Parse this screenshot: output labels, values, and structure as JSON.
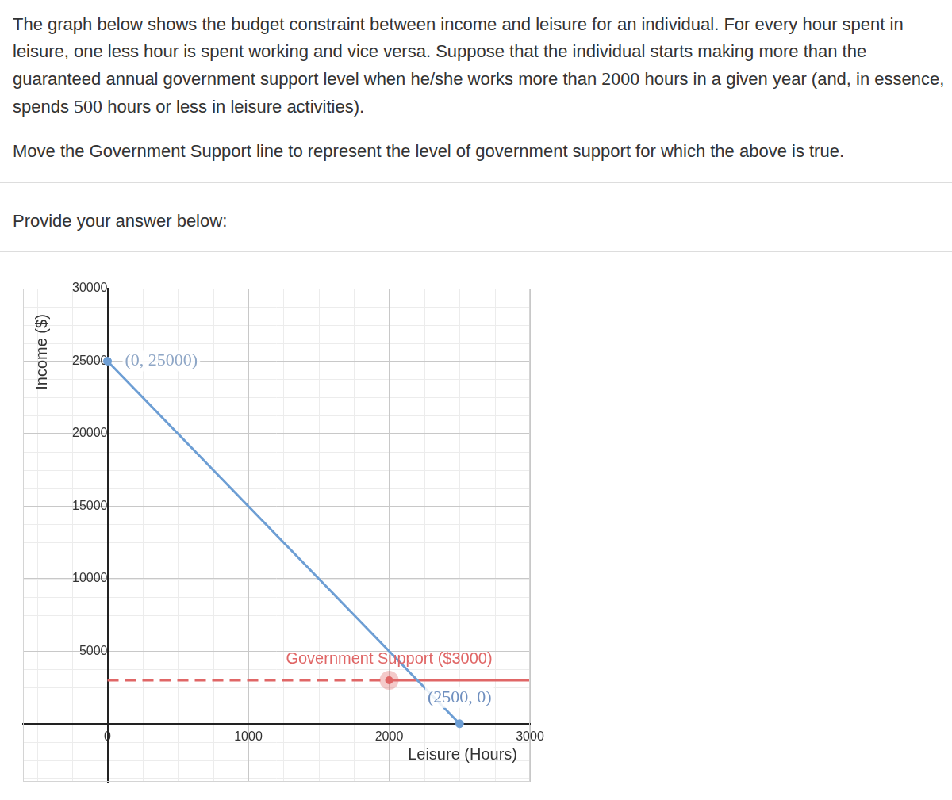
{
  "question": {
    "paragraphs": [
      [
        {
          "text": "The graph below shows the budget constraint between income and leisure for an individual. For every hour spent in leisure, one less hour is spent working and vice versa. Suppose that the individual starts making more than the guaranteed annual government support level when he/she works more than "
        },
        {
          "text": "2000",
          "style": "math"
        },
        {
          "text": " hours in a given year (and, in essence, spends "
        },
        {
          "text": "500",
          "style": "math"
        },
        {
          "text": " hours or less in leisure activities)."
        }
      ],
      [
        {
          "text": "Move the Government Support line to represent the level of government support for which the above is true."
        }
      ]
    ]
  },
  "prompt": "Provide your answer below:",
  "chart_data": {
    "type": "line",
    "x_label": "Leisure (Hours)",
    "y_label": "Income ($)",
    "xlim": [
      -600,
      3000
    ],
    "ylim": [
      -4000,
      30000
    ],
    "xticks": [
      0,
      1000,
      2000,
      3000
    ],
    "yticks": [
      5000,
      10000,
      15000,
      20000,
      25000,
      30000
    ],
    "grid": true,
    "series": [
      {
        "color": "#6d9ed4",
        "x": [
          0,
          2500
        ],
        "values": [
          25000,
          0
        ],
        "marker": "circle",
        "line_style": "solid"
      },
      {
        "color": "#e06666",
        "x": [
          0,
          2000
        ],
        "values": [
          3000,
          3000
        ],
        "marker": "none",
        "line_style": "dashed"
      },
      {
        "color": "#e06666",
        "x": [
          2000,
          3000
        ],
        "values": [
          3000,
          3000
        ],
        "marker": "none",
        "line_style": "solid"
      },
      {
        "color": "#e06666",
        "x": [
          2000
        ],
        "values": [
          3000
        ],
        "marker": "circle",
        "type": "scatter"
      }
    ],
    "annotations": [
      {
        "text": "(0, 25000)",
        "x": 0,
        "y": 25000,
        "color": "#8ea6c6"
      },
      {
        "text": "(2500, 0)",
        "x": 2500,
        "y": 0,
        "color": "#6f8fbf"
      },
      {
        "text": "Government Support ($3000)",
        "x": 2000,
        "y": 3000,
        "color": "#e06666"
      }
    ]
  }
}
